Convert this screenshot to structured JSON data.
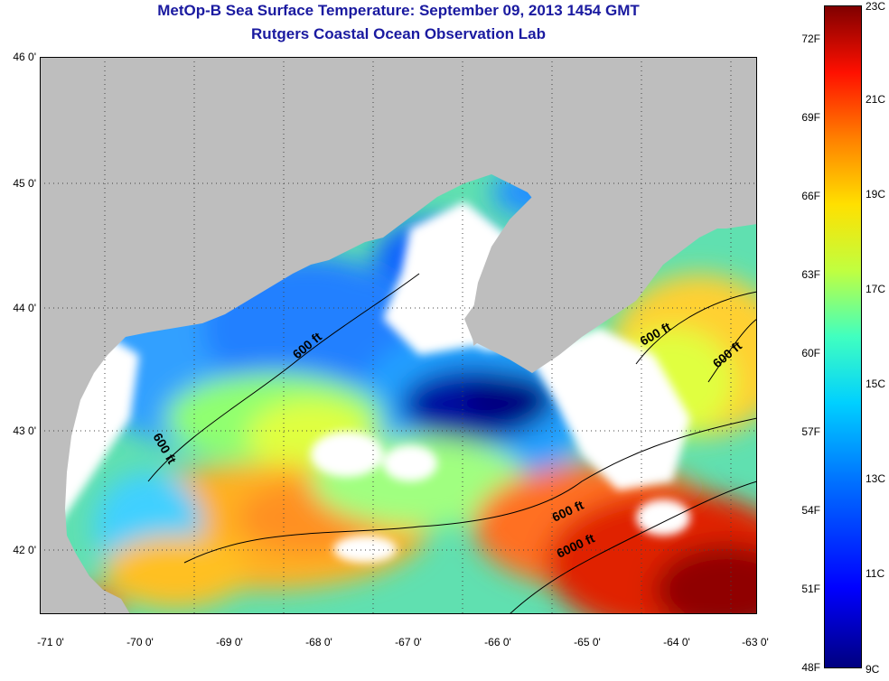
{
  "title": "MetOp-B Sea Surface Temperature:  September 09, 2013 1454 GMT",
  "subtitle": "Rutgers Coastal Ocean Observation Lab",
  "lat_labels": [
    "46 0'",
    "45 0'",
    "44 0'",
    "43 0'",
    "42 0'"
  ],
  "lon_labels": [
    "-71 0'",
    "-70 0'",
    "-69 0'",
    "-68 0'",
    "-67 0'",
    "-66 0'",
    "-65 0'",
    "-64 0'",
    "-63 0'"
  ],
  "contour_labels": [
    "600 ft",
    "600 ft",
    "600 ft",
    "600 ft",
    "600 ft",
    "6000 ft"
  ],
  "colorbar": {
    "fahrenheit": [
      "72F",
      "69F",
      "66F",
      "63F",
      "60F",
      "57F",
      "54F",
      "51F",
      "48F"
    ],
    "celsius": [
      "23C",
      "21C",
      "19C",
      "17C",
      "15C",
      "13C",
      "11C",
      "9C"
    ]
  },
  "colors": {
    "land": "#bebebe",
    "cloud": "#ffffff",
    "title": "#1a1aa0"
  }
}
